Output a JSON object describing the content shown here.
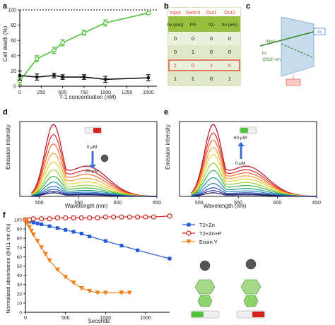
{
  "panel_labels": [
    "a",
    "b",
    "c",
    "d",
    "e",
    "f"
  ],
  "colors": {
    "green": "#4fc43a",
    "black": "#111111",
    "table_green": "#98c03e",
    "table_header_bg": "#e9f0db",
    "table_row_bg": "#dfe9c8",
    "highlight": "#e0432c",
    "blue": "#1f57d6",
    "red": "#d6211c",
    "orange": "#f07e1a"
  },
  "chart_data": [
    {
      "id": "a",
      "type": "line",
      "xlabel": "T-1 concentration (nM)",
      "ylabel": "Cell death (%)",
      "xlim": [
        0,
        1600
      ],
      "ylim": [
        0,
        100
      ],
      "xticks": [
        "0",
        "250",
        "500",
        "750",
        "1000",
        "1250",
        "1500"
      ],
      "yticks": [
        "0",
        "20",
        "40",
        "60",
        "80",
        "100"
      ],
      "reference_line": 100,
      "series": [
        {
          "color": "#4fc43a",
          "x": [
            0,
            200,
            400,
            500,
            750,
            1000,
            1500
          ],
          "y": [
            7,
            36,
            47,
            57,
            70,
            83,
            96
          ],
          "err": [
            5,
            4,
            4,
            4,
            3,
            4,
            2
          ]
        },
        {
          "color": "#111111",
          "x": [
            0,
            200,
            400,
            500,
            750,
            1000,
            1500
          ],
          "y": [
            14,
            12,
            14,
            12,
            12,
            9,
            11
          ],
          "err": [
            6,
            4,
            3,
            3,
            3,
            4,
            4
          ]
        }
      ]
    },
    {
      "id": "b",
      "type": "table",
      "header": [
        "Input",
        "Switch",
        "Out1",
        "Out2"
      ],
      "subheader": [
        "hν (exc)",
        "PS",
        "¹O₂",
        "hν (em)"
      ],
      "rows": [
        [
          "0",
          "0",
          "0",
          "0"
        ],
        [
          "0",
          "1",
          "0",
          "0"
        ],
        [
          "1",
          "0",
          "1",
          "0"
        ],
        [
          "1",
          "1",
          "0",
          "1"
        ]
      ],
      "highlighted_row": 2
    },
    {
      "id": "d",
      "type": "line",
      "xlabel": "Wavelength (nm)",
      "ylabel": "Emission intensity",
      "xlim": [
        475,
        650
      ],
      "xticks": [
        "500",
        "550",
        "600",
        "650"
      ],
      "annotation_top": "0 μM",
      "annotation_bottom": "20 μM",
      "arrow_direction": "down",
      "peaks": [
        1.0,
        0.86,
        0.73,
        0.6,
        0.48,
        0.37,
        0.28,
        0.2,
        0.14,
        0.1,
        0.07,
        0.05
      ]
    },
    {
      "id": "e",
      "type": "line",
      "xlabel": "Wavelength (nm)",
      "ylabel": "Emission intensity",
      "xlim": [
        475,
        650
      ],
      "xticks": [
        "500",
        "550",
        "600",
        "650"
      ],
      "annotation_top": "60 μM",
      "annotation_bottom": "0 μM",
      "arrow_direction": "up",
      "peaks": [
        1.0,
        0.88,
        0.78,
        0.68,
        0.58,
        0.46,
        0.36,
        0.26,
        0.18,
        0.12,
        0.08,
        0.05
      ]
    },
    {
      "id": "f",
      "type": "line",
      "xlabel": "Seconds",
      "ylabel": "Normalized absorbance @411 nm (%)",
      "xlim": [
        0,
        1800
      ],
      "ylim": [
        0,
        100
      ],
      "xticks": [
        "0",
        "500",
        "1000",
        "1500"
      ],
      "yticks": [
        "0",
        "10",
        "20",
        "30",
        "40",
        "50",
        "60",
        "70",
        "80",
        "90",
        "100"
      ],
      "series": [
        {
          "name": "T2+Zn",
          "marker": "square",
          "color": "#1f57d6",
          "x": [
            0,
            50,
            100,
            150,
            200,
            300,
            400,
            500,
            600,
            700,
            800,
            1000,
            1200,
            1400,
            1800
          ],
          "y": [
            100,
            98,
            97,
            96,
            95,
            93,
            91,
            89,
            87,
            85,
            82,
            77,
            72,
            67,
            58
          ]
        },
        {
          "name": "T2+Zn+P",
          "marker": "circle",
          "color": "#d6211c",
          "x": [
            0,
            50,
            100,
            200,
            300,
            400,
            500,
            600,
            700,
            800,
            900,
            1000,
            1100,
            1200,
            1300,
            1400,
            1500,
            1600,
            1800
          ],
          "y": [
            100,
            100,
            101,
            101,
            101,
            102,
            102,
            102,
            102,
            102,
            102,
            103,
            103,
            103,
            103,
            103,
            103,
            103,
            104
          ]
        },
        {
          "name": "Eosin Y",
          "marker": "triangle-down",
          "color": "#f07e1a",
          "x": [
            0,
            25,
            50,
            75,
            100,
            150,
            200,
            250,
            300,
            400,
            500,
            600,
            700,
            800,
            900,
            1000,
            1200,
            1300
          ],
          "y": [
            100,
            96,
            92,
            88,
            84,
            77,
            70,
            63,
            56,
            46,
            38,
            32,
            26,
            23,
            21,
            21,
            21,
            21
          ]
        }
      ]
    }
  ]
}
